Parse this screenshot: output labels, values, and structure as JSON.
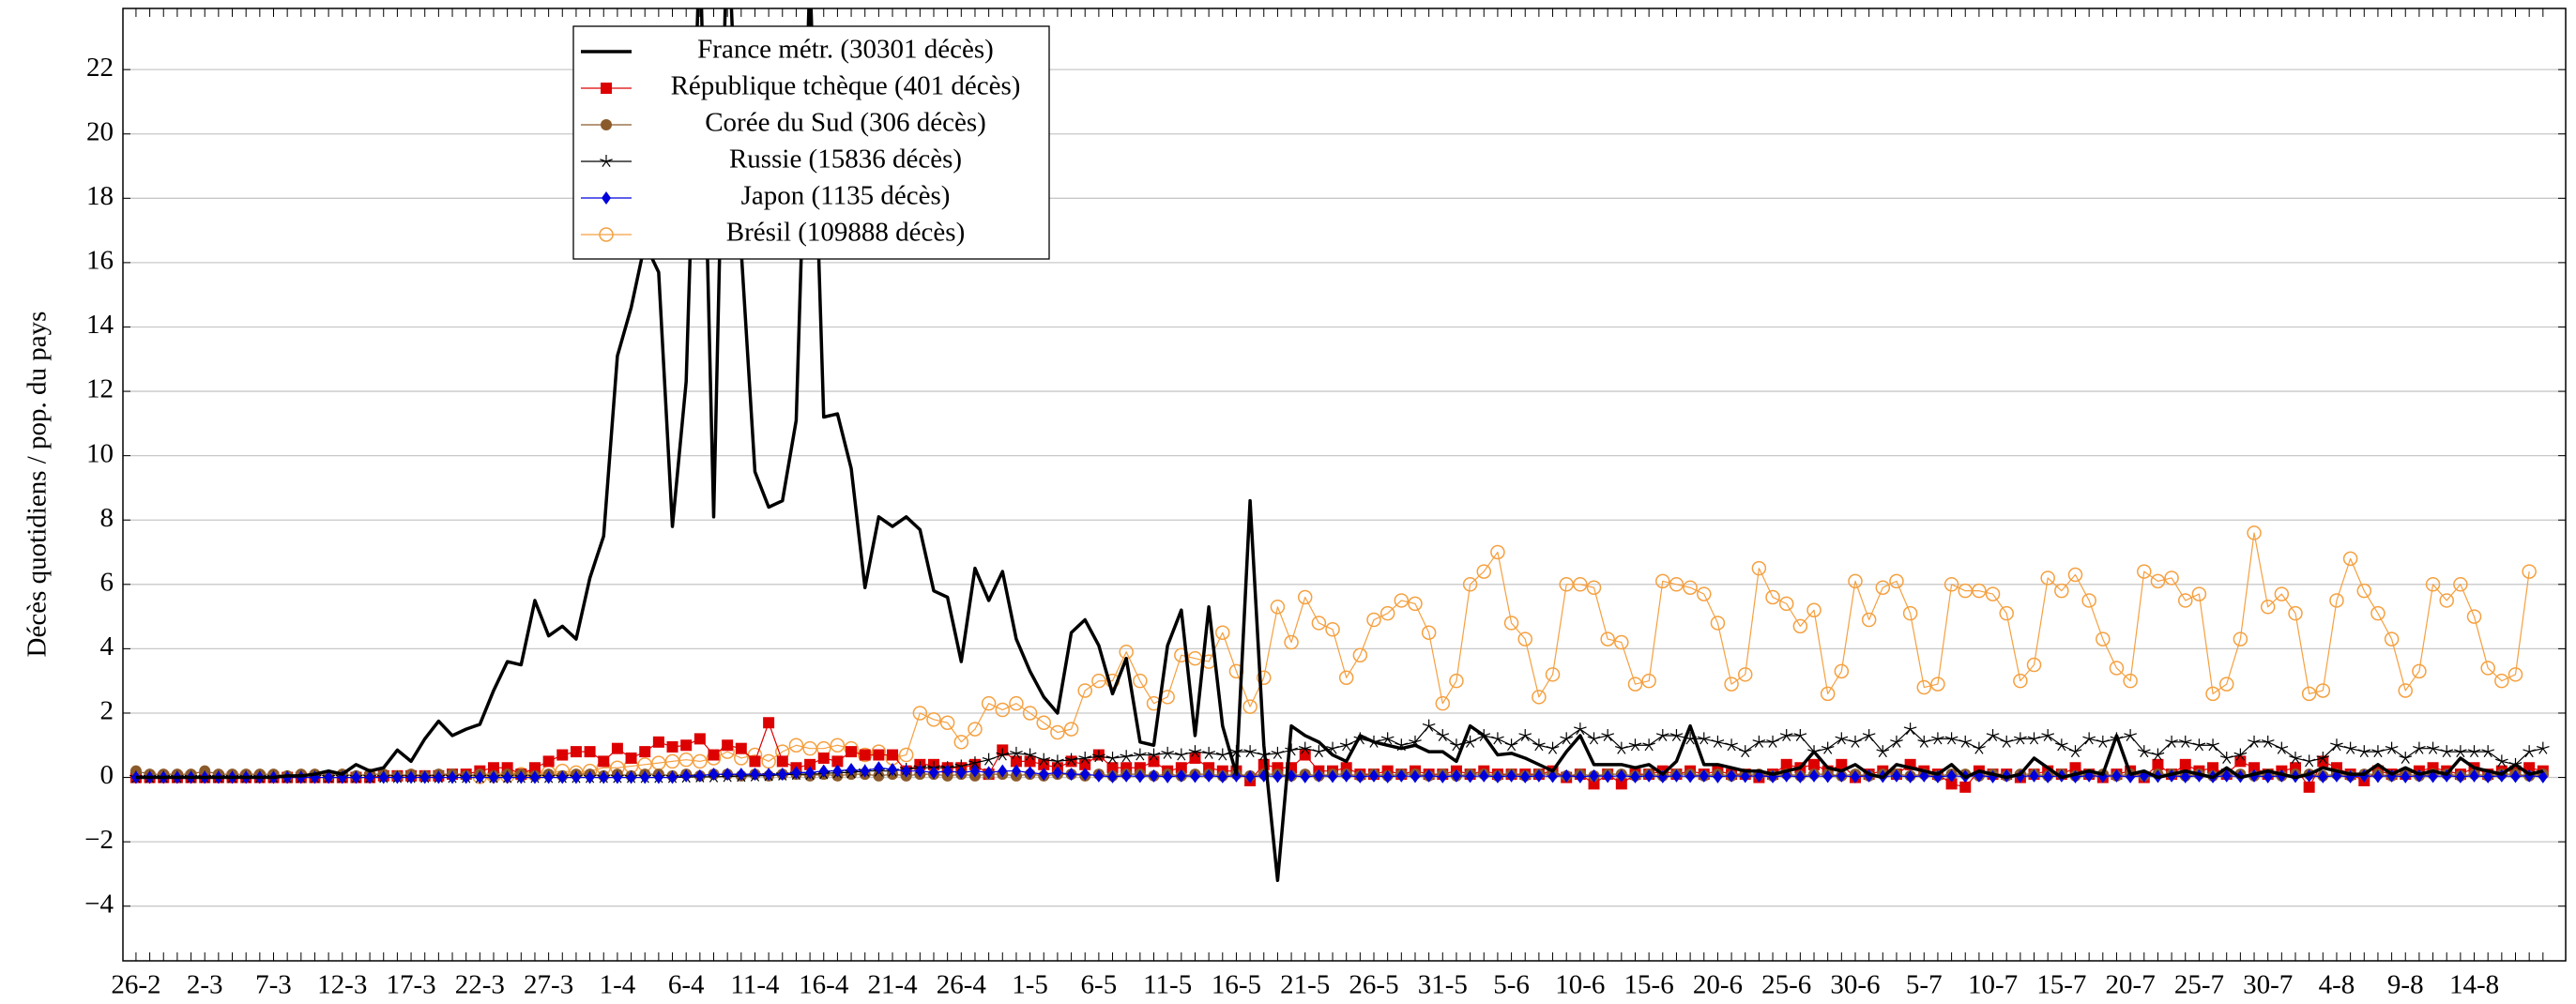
{
  "chart_data": {
    "type": "line",
    "ylabel": "Décès quotidiens / pop. du pays",
    "categories": [
      "26-2",
      null,
      null,
      null,
      null,
      "2-3",
      null,
      null,
      null,
      null,
      "7-3",
      null,
      null,
      null,
      null,
      "12-3",
      null,
      null,
      null,
      null,
      "17-3",
      null,
      null,
      null,
      null,
      "22-3",
      null,
      null,
      null,
      null,
      "27-3",
      null,
      null,
      null,
      null,
      "1-4",
      null,
      null,
      null,
      null,
      "6-4",
      null,
      null,
      null,
      null,
      "11-4",
      null,
      null,
      null,
      null,
      "16-4",
      null,
      null,
      null,
      null,
      "21-4",
      null,
      null,
      null,
      null,
      "26-4",
      null,
      null,
      null,
      null,
      "1-5",
      null,
      null,
      null,
      null,
      "6-5",
      null,
      null,
      null,
      null,
      "11-5",
      null,
      null,
      null,
      null,
      "16-5",
      null,
      null,
      null,
      null,
      "21-5",
      null,
      null,
      null,
      null,
      "26-5",
      null,
      null,
      null,
      null,
      "31-5",
      null,
      null,
      null,
      null,
      "5-6",
      null,
      null,
      null,
      null,
      "10-6",
      null,
      null,
      null,
      null,
      "15-6",
      null,
      null,
      null,
      null,
      "20-6",
      null,
      null,
      null,
      null,
      "25-6",
      null,
      null,
      null,
      null,
      "30-6",
      null,
      null,
      null,
      null,
      "5-7",
      null,
      null,
      null,
      null,
      "10-7",
      null,
      null,
      null,
      null,
      "15-7",
      null,
      null,
      null,
      null,
      "20-7",
      null,
      null,
      null,
      null,
      "25-7",
      null,
      null,
      null,
      null,
      "30-7",
      null,
      null,
      null,
      null,
      "4-8",
      null,
      null,
      null,
      null,
      "9-8",
      null,
      null,
      null,
      null,
      "14-8",
      null,
      null,
      null,
      null,
      null
    ],
    "ylim": [
      -5.7,
      23.9
    ],
    "yticks": [
      {
        "value": -4,
        "label": "−4"
      },
      {
        "value": -2,
        "label": "−2"
      },
      0,
      2,
      4,
      6,
      8,
      10,
      12,
      14,
      16,
      18,
      20,
      22
    ],
    "grid": true,
    "series": [
      {
        "name": "France métr. (30301 décès)",
        "color": "#000000",
        "marker": null,
        "line_width": 3.5,
        "values": [
          0,
          0,
          0,
          0,
          0,
          0,
          0,
          0,
          0,
          0,
          0,
          0.05,
          0.05,
          0.1,
          0.2,
          0.1,
          0.4,
          0.2,
          0.3,
          0.85,
          0.5,
          1.2,
          1.75,
          1.3,
          1.5,
          1.65,
          2.7,
          3.6,
          3.5,
          5.5,
          4.4,
          4.7,
          4.3,
          6.2,
          7.5,
          13.1,
          14.6,
          16.6,
          15.7,
          7.8,
          12.3,
          26,
          8.1,
          27,
          16.4,
          9.5,
          8.4,
          8.6,
          11.1,
          25,
          11.2,
          11.3,
          9.6,
          5.9,
          8.1,
          7.8,
          8.1,
          7.7,
          5.8,
          5.6,
          3.6,
          6.5,
          5.5,
          6.4,
          4.3,
          3.3,
          2.5,
          2.0,
          4.5,
          4.9,
          4.1,
          2.6,
          3.7,
          1.1,
          1.0,
          4.1,
          5.2,
          1.3,
          5.3,
          1.6,
          0.1,
          8.6,
          1.0,
          -3.2,
          1.6,
          1.3,
          1.1,
          0.7,
          0.5,
          1.3,
          1.1,
          1.0,
          0.9,
          1.0,
          0.8,
          0.8,
          0.5,
          1.6,
          1.3,
          0.7,
          0.75,
          0.6,
          0.4,
          0.2,
          0.8,
          1.3,
          0.4,
          0.4,
          0.4,
          0.3,
          0.4,
          0.1,
          0.5,
          1.6,
          0.4,
          0.4,
          0.3,
          0.2,
          0.2,
          0.1,
          0.2,
          0.3,
          0.8,
          0.3,
          0.2,
          0.4,
          0.1,
          0,
          0.4,
          0.3,
          0.2,
          0.1,
          0.4,
          0,
          0.2,
          0.1,
          0,
          0.1,
          0.6,
          0.3,
          0,
          0.1,
          0.2,
          0.1,
          1.3,
          0.1,
          0.2,
          0,
          0.1,
          0.2,
          0.1,
          0,
          0.3,
          0,
          0.1,
          0.2,
          0.1,
          0,
          0.1,
          0.3,
          0.2,
          0.1,
          0.1,
          0.4,
          0.1,
          0.3,
          0.1,
          0.2,
          0.1,
          0.6,
          0.3,
          0.2,
          0.1,
          0.4,
          0.1,
          0.2
        ]
      },
      {
        "name": "République tchèque (401 décès)",
        "color": "#dd0000",
        "marker": "square",
        "line_width": 1.2,
        "values": [
          0,
          0,
          0,
          0,
          0,
          0,
          0,
          0,
          0,
          0,
          0,
          0,
          0,
          0,
          0,
          0,
          0,
          0,
          0.05,
          0.05,
          0.05,
          0.05,
          0.05,
          0.1,
          0.1,
          0.2,
          0.3,
          0.3,
          0.1,
          0.3,
          0.5,
          0.7,
          0.8,
          0.8,
          0.5,
          0.9,
          0.6,
          0.8,
          1.1,
          0.95,
          1.0,
          1.2,
          0.7,
          1.0,
          0.9,
          0.5,
          1.7,
          0.5,
          0.3,
          0.4,
          0.6,
          0.5,
          0.8,
          0.7,
          0.7,
          0.7,
          0.2,
          0.4,
          0.4,
          0.3,
          0.3,
          0.4,
          0.1,
          0.85,
          0.5,
          0.5,
          0.4,
          0.3,
          0.5,
          0.4,
          0.7,
          0.3,
          0.3,
          0.3,
          0.5,
          0.2,
          0.3,
          0.6,
          0.3,
          0.2,
          0.2,
          -0.1,
          0.4,
          0.3,
          0.3,
          0.7,
          0.2,
          0.2,
          0.3,
          0.1,
          0.1,
          0.2,
          0.1,
          0.2,
          0.1,
          0.1,
          0.2,
          0.1,
          0.2,
          0.1,
          0.1,
          0.1,
          0.1,
          0.2,
          0,
          0.1,
          -0.2,
          0.1,
          -0.2,
          0.1,
          0.1,
          0.2,
          0.1,
          0.2,
          0.1,
          0.2,
          0.1,
          0.1,
          0,
          0.1,
          0.4,
          0.3,
          0.4,
          0.2,
          0.4,
          0,
          0.1,
          0.2,
          0.1,
          0.4,
          0.2,
          0.1,
          -0.2,
          -0.3,
          0.2,
          0.1,
          0.1,
          0,
          0.1,
          0.2,
          0.1,
          0.3,
          0.1,
          0,
          0.1,
          0.2,
          0,
          0.4,
          0.1,
          0.4,
          0.2,
          0.3,
          0.1,
          0.5,
          0.3,
          0.1,
          0.2,
          0.3,
          -0.3,
          0.5,
          0.3,
          0.1,
          -0.1,
          0.2,
          0.1,
          0.1,
          0.2,
          0.3,
          0.2,
          0.1,
          0.3,
          0.1,
          0.2,
          0.2,
          0.3,
          0.2
        ]
      },
      {
        "name": "Corée du Sud (306 décès)",
        "color": "#8b5a2b",
        "marker": "circle",
        "line_width": 1.2,
        "values": [
          0.2,
          0.1,
          0.1,
          0.1,
          0.1,
          0.2,
          0.1,
          0.1,
          0.1,
          0.1,
          0.1,
          0.05,
          0.1,
          0.1,
          0.05,
          0.1,
          0.05,
          0.1,
          0.1,
          0.05,
          0.1,
          0.05,
          0.1,
          0.1,
          0.05,
          0.1,
          0.05,
          0.1,
          0.1,
          0.05,
          0.1,
          0.05,
          0.1,
          0.1,
          0.05,
          0.1,
          0.05,
          0.1,
          0.1,
          0.05,
          0.1,
          0.05,
          0.1,
          0.1,
          0.05,
          0.1,
          0.05,
          0.1,
          0.1,
          0.05,
          0.1,
          0.05,
          0.1,
          0.1,
          0.05,
          0.1,
          0.05,
          0.1,
          0.1,
          0.05,
          0.1,
          0.05,
          0.1,
          0.1,
          0.05,
          0.1,
          0.05,
          0.1,
          0.1,
          0.05,
          0.1,
          0.05,
          0.1,
          0.1,
          0.05,
          0.1,
          0.05,
          0.1,
          0.1,
          0.05,
          0.1,
          0.05,
          0.1,
          0.1,
          0.05,
          0.1,
          0.05,
          0.1,
          0.1,
          0.05,
          0.1,
          0.05,
          0.1,
          0.1,
          0.05,
          0.1,
          0.05,
          0.1,
          0.1,
          0.05,
          0.1,
          0.05,
          0.1,
          0.1,
          0.05,
          0.1,
          0.05,
          0.1,
          0.1,
          0.05,
          0.1,
          0.05,
          0.1,
          0.1,
          0.05,
          0.1,
          0.05,
          0.1,
          0.1,
          0.05,
          0.1,
          0.05,
          0.1,
          0.1,
          0.05,
          0.1,
          0.05,
          0.1,
          0.1,
          0.05,
          0.1,
          0.05,
          0.1,
          0.1,
          0.05,
          0.1,
          0.05,
          0.1,
          0.1,
          0.05,
          0.1,
          0.05,
          0.1,
          0.1,
          0.05,
          0.1,
          0.05,
          0.1,
          0.1,
          0.05,
          0.1,
          0.05,
          0.1,
          0.1,
          0.05,
          0.1,
          0.05,
          0.1,
          0.1,
          0.05,
          0.1,
          0.05,
          0.1,
          0.1,
          0.05,
          0.1,
          0.05,
          0.1,
          0.1,
          0.05,
          0.1,
          0.05,
          0.1,
          0.1,
          0.05,
          0.1
        ]
      },
      {
        "name": "Russie (15836 décès)",
        "color": "#000000",
        "marker": "star",
        "line_width": 1.2,
        "values": [
          0,
          0,
          0,
          0,
          0,
          0,
          0,
          0,
          0,
          0,
          0,
          0,
          0,
          0,
          0,
          0,
          0,
          0,
          0,
          0,
          0,
          0,
          0,
          0,
          0,
          0,
          0,
          0,
          0,
          0,
          0,
          0,
          0,
          0,
          0,
          0,
          0,
          0,
          0,
          0,
          0.01,
          0.02,
          0.02,
          0.03,
          0.04,
          0.05,
          0.06,
          0.08,
          0.1,
          0.1,
          0.12,
          0.15,
          0.15,
          0.2,
          0.2,
          0.2,
          0.25,
          0.3,
          0.3,
          0.3,
          0.35,
          0.45,
          0.55,
          0.7,
          0.75,
          0.7,
          0.55,
          0.5,
          0.55,
          0.6,
          0.65,
          0.6,
          0.65,
          0.7,
          0.7,
          0.75,
          0.7,
          0.8,
          0.75,
          0.7,
          0.8,
          0.8,
          0.7,
          0.75,
          0.85,
          0.9,
          0.8,
          0.9,
          1.0,
          1.2,
          1.1,
          1.2,
          1.0,
          1.1,
          1.6,
          1.3,
          1.0,
          1.1,
          1.3,
          1.2,
          1.0,
          1.3,
          1.0,
          0.9,
          1.2,
          1.5,
          1.2,
          1.3,
          0.9,
          1.0,
          1.0,
          1.3,
          1.3,
          1.2,
          1.2,
          1.1,
          1.0,
          0.8,
          1.1,
          1.1,
          1.3,
          1.3,
          0.8,
          0.9,
          1.2,
          1.1,
          1.3,
          0.8,
          1.1,
          1.5,
          1.1,
          1.2,
          1.2,
          1.1,
          0.9,
          1.3,
          1.1,
          1.2,
          1.2,
          1.3,
          1.0,
          0.8,
          1.2,
          1.1,
          1.2,
          1.3,
          0.8,
          0.7,
          1.1,
          1.1,
          1.0,
          1.0,
          0.6,
          0.7,
          1.1,
          1.1,
          0.9,
          0.6,
          0.5,
          0.6,
          1.0,
          0.9,
          0.8,
          0.8,
          0.9,
          0.6,
          0.9,
          0.9,
          0.8,
          0.8,
          0.8,
          0.8,
          0.5,
          0.4,
          0.8,
          0.9
        ]
      },
      {
        "name": "Japon (1135 décès)",
        "color": "#0000dd",
        "marker": "diamond",
        "line_width": 1.2,
        "values": [
          0,
          0,
          0,
          0,
          0,
          0,
          0,
          0,
          0,
          0,
          0,
          0,
          0,
          0,
          0,
          0,
          0,
          0,
          0,
          0,
          0,
          0,
          0,
          0,
          0,
          0,
          0,
          0,
          0,
          0,
          0,
          0,
          0,
          0,
          0,
          0,
          0,
          0,
          0,
          0,
          0.05,
          0.05,
          0.1,
          0.1,
          0.1,
          0.1,
          0.1,
          0.1,
          0.15,
          0.15,
          0.2,
          0.2,
          0.25,
          0.2,
          0.3,
          0.25,
          0.2,
          0.2,
          0.15,
          0.2,
          0.15,
          0.2,
          0.15,
          0.2,
          0.2,
          0.15,
          0.1,
          0.15,
          0.1,
          0.1,
          0.05,
          0.02,
          0.05,
          0.03,
          0.05,
          0.02,
          0.05,
          0.03,
          0.05,
          0.02,
          0.05,
          0.02,
          0.05,
          0.03,
          0.05,
          0.02,
          0.05,
          0.03,
          0.05,
          0.02,
          0.05,
          0.02,
          0.05,
          0.03,
          0.05,
          0.02,
          0.05,
          0.03,
          0.05,
          0.02,
          0.05,
          0.02,
          0.05,
          0.03,
          0.05,
          0.02,
          0.05,
          0.03,
          0.05,
          0.02,
          0.05,
          0.02,
          0.05,
          0.03,
          0.05,
          0.02,
          0.05,
          0.03,
          0.05,
          0.02,
          0.05,
          0.02,
          0.05,
          0.03,
          0.05,
          0.02,
          0.05,
          0.03,
          0.05,
          0.02,
          0.05,
          0.02,
          0.05,
          0.03,
          0.05,
          0.02,
          0.05,
          0.03,
          0.05,
          0.02,
          0.05,
          0.02,
          0.05,
          0.03,
          0.05,
          0.02,
          0.05,
          0.03,
          0.05,
          0.02,
          0.05,
          0.02,
          0.05,
          0.03,
          0.05,
          0.02,
          0.05,
          0.03,
          0.05,
          0.02,
          0.05,
          0.02,
          0.05,
          0.03,
          0.05,
          0.02,
          0.05,
          0.03,
          0.05,
          0.02,
          0.05,
          0.02,
          0.05,
          0.03,
          0.05,
          0.02
        ]
      },
      {
        "name": "Brésil (109888 décès)",
        "color": "#f5a040",
        "marker": "open-circle",
        "line_width": 1.2,
        "values": [
          null,
          null,
          null,
          null,
          null,
          null,
          null,
          null,
          null,
          null,
          null,
          null,
          null,
          null,
          null,
          null,
          null,
          null,
          null,
          null,
          null,
          null,
          null,
          null,
          null,
          0.02,
          0.05,
          0.05,
          0.1,
          0.1,
          0.15,
          0.2,
          0.15,
          0.2,
          0.3,
          0.3,
          0.35,
          0.4,
          0.45,
          0.5,
          0.55,
          0.5,
          0.6,
          0.8,
          0.6,
          0.7,
          0.5,
          0.8,
          1.0,
          0.9,
          0.9,
          1.0,
          0.9,
          0.7,
          0.8,
          0.6,
          0.7,
          2.0,
          1.8,
          1.7,
          1.1,
          1.5,
          2.3,
          2.1,
          2.3,
          2.0,
          1.7,
          1.4,
          1.5,
          2.7,
          3.0,
          3.0,
          3.9,
          3.0,
          2.3,
          2.5,
          3.8,
          3.7,
          3.6,
          4.5,
          3.3,
          2.2,
          3.1,
          5.3,
          4.2,
          5.6,
          4.8,
          4.6,
          3.1,
          3.8,
          4.9,
          5.1,
          5.5,
          5.4,
          4.5,
          2.3,
          3.0,
          6.0,
          6.4,
          7.0,
          4.8,
          4.3,
          2.5,
          3.2,
          6.0,
          6.0,
          5.9,
          4.3,
          4.2,
          2.9,
          3.0,
          6.1,
          6.0,
          5.9,
          5.7,
          4.8,
          2.9,
          3.2,
          6.5,
          5.6,
          5.4,
          4.7,
          5.2,
          2.6,
          3.3,
          6.1,
          4.9,
          5.9,
          6.1,
          5.1,
          2.8,
          2.9,
          6.0,
          5.8,
          5.8,
          5.7,
          5.1,
          3.0,
          3.5,
          6.2,
          5.8,
          6.3,
          5.5,
          4.3,
          3.4,
          3.0,
          6.4,
          6.1,
          6.2,
          5.5,
          5.7,
          2.6,
          2.9,
          4.3,
          7.6,
          5.3,
          5.7,
          5.1,
          2.6,
          2.7,
          5.5,
          6.8,
          5.8,
          5.1,
          4.3,
          2.7,
          3.3,
          6.0,
          5.5,
          6.0,
          5.0,
          3.4,
          3.0,
          3.2,
          6.4,
          null
        ]
      }
    ]
  }
}
